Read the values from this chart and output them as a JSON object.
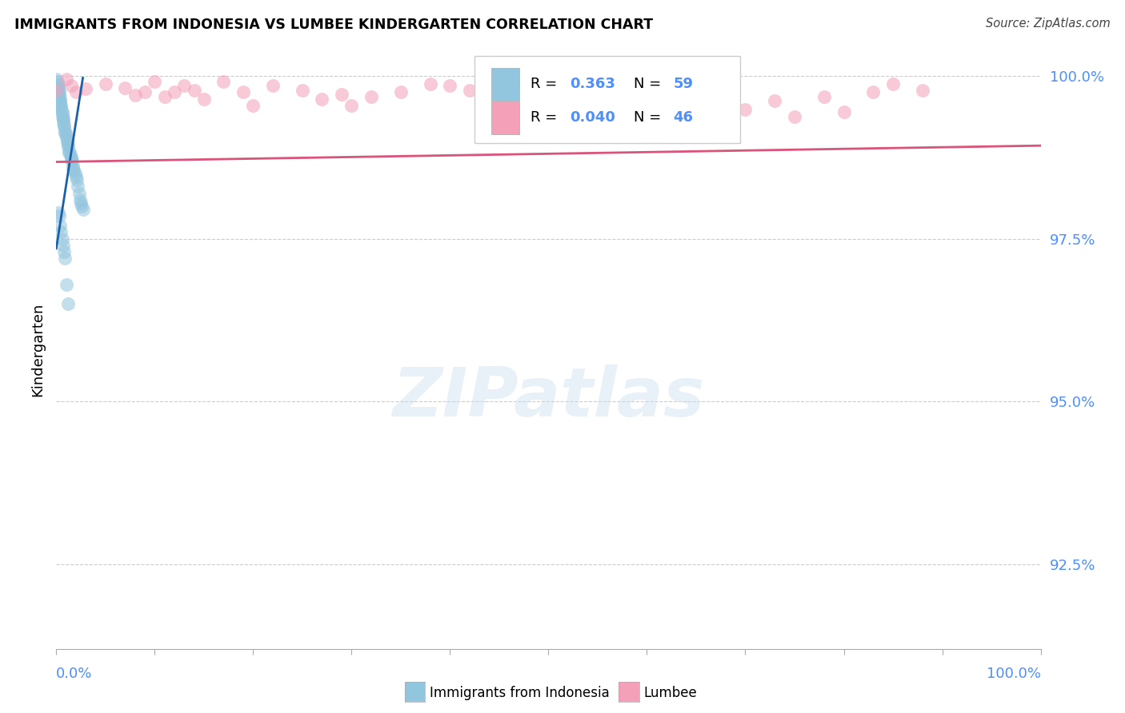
{
  "title": "IMMIGRANTS FROM INDONESIA VS LUMBEE KINDERGARTEN CORRELATION CHART",
  "source": "Source: ZipAtlas.com",
  "ylabel": "Kindergarten",
  "xmin": 0.0,
  "xmax": 1.0,
  "ymin": 0.912,
  "ymax": 1.004,
  "ytick_values": [
    1.0,
    0.975,
    0.95,
    0.925
  ],
  "ytick_labels": [
    "100.0%",
    "97.5%",
    "95.0%",
    "92.5%"
  ],
  "color_blue": "#92c5de",
  "color_pink": "#f4a0b8",
  "color_blue_line": "#1a5fa8",
  "color_pink_line": "#d9537a",
  "color_grid": "#cccccc",
  "color_axis_blue": "#4d8fff",
  "watermark": "ZIPatlas",
  "legend_items": [
    {
      "r": "0.363",
      "n": "59"
    },
    {
      "r": "0.040",
      "n": "46"
    }
  ],
  "blue_x": [
    0.0,
    0.001,
    0.001,
    0.002,
    0.002,
    0.002,
    0.003,
    0.003,
    0.003,
    0.004,
    0.004,
    0.004,
    0.005,
    0.005,
    0.005,
    0.006,
    0.006,
    0.006,
    0.007,
    0.007,
    0.007,
    0.008,
    0.008,
    0.009,
    0.009,
    0.01,
    0.01,
    0.011,
    0.011,
    0.012,
    0.012,
    0.013,
    0.013,
    0.014,
    0.015,
    0.015,
    0.016,
    0.017,
    0.017,
    0.018,
    0.019,
    0.02,
    0.021,
    0.022,
    0.023,
    0.024,
    0.025,
    0.026,
    0.027,
    0.002,
    0.003,
    0.004,
    0.005,
    0.006,
    0.007,
    0.008,
    0.009,
    0.01,
    0.012
  ],
  "blue_y": [
    0.9995,
    0.9992,
    0.9988,
    0.9985,
    0.9982,
    0.9978,
    0.9975,
    0.9972,
    0.9968,
    0.9965,
    0.9962,
    0.9958,
    0.9955,
    0.9952,
    0.9948,
    0.9945,
    0.9942,
    0.9938,
    0.9935,
    0.9932,
    0.9928,
    0.9925,
    0.9922,
    0.9915,
    0.9912,
    0.991,
    0.9905,
    0.9902,
    0.9898,
    0.9895,
    0.9892,
    0.9885,
    0.9882,
    0.988,
    0.9875,
    0.9872,
    0.987,
    0.9862,
    0.9858,
    0.9855,
    0.985,
    0.9845,
    0.984,
    0.983,
    0.982,
    0.981,
    0.9805,
    0.98,
    0.9795,
    0.979,
    0.9785,
    0.977,
    0.976,
    0.975,
    0.974,
    0.973,
    0.972,
    0.968,
    0.965
  ],
  "pink_x": [
    0.0,
    0.01,
    0.015,
    0.02,
    0.03,
    0.05,
    0.07,
    0.08,
    0.09,
    0.1,
    0.11,
    0.12,
    0.13,
    0.14,
    0.15,
    0.17,
    0.19,
    0.2,
    0.22,
    0.25,
    0.27,
    0.29,
    0.3,
    0.32,
    0.35,
    0.38,
    0.4,
    0.42,
    0.45,
    0.48,
    0.5,
    0.52,
    0.55,
    0.57,
    0.6,
    0.63,
    0.65,
    0.68,
    0.7,
    0.73,
    0.75,
    0.78,
    0.8,
    0.83,
    0.85,
    0.88
  ],
  "pink_y": [
    0.9978,
    0.9995,
    0.9985,
    0.9975,
    0.998,
    0.9988,
    0.9982,
    0.997,
    0.9975,
    0.9992,
    0.9968,
    0.9975,
    0.9985,
    0.9978,
    0.9965,
    0.9992,
    0.9975,
    0.9955,
    0.9985,
    0.9978,
    0.9965,
    0.9972,
    0.9955,
    0.9968,
    0.9975,
    0.9988,
    0.9985,
    0.9978,
    0.9968,
    0.9975,
    0.9965,
    0.9985,
    0.9978,
    0.9988,
    0.998,
    0.9975,
    0.9945,
    0.9968,
    0.9948,
    0.9962,
    0.9938,
    0.9968,
    0.9945,
    0.9975,
    0.9988,
    0.9978
  ],
  "blue_trend_x": [
    0.0,
    0.027
  ],
  "blue_trend_y": [
    0.9735,
    0.9997
  ],
  "pink_trend_x": [
    0.0,
    1.0
  ],
  "pink_trend_y": [
    0.9868,
    0.9893
  ],
  "legend1_label": "Immigrants from Indonesia",
  "legend2_label": "Lumbee"
}
